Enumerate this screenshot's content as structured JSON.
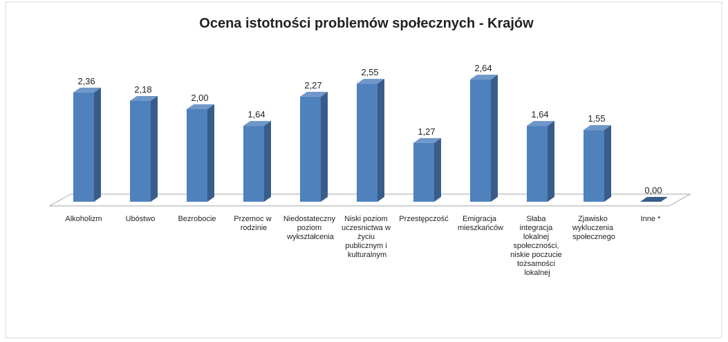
{
  "chart_data": {
    "type": "bar3d",
    "title": "Ocena istotności problemów społecznych - Krajów",
    "categories": [
      "Alkoholizm",
      "Ubóstwo",
      "Bezrobocie",
      "Przemoc w rodzinie",
      "Niedostateczny poziom wykształcenia",
      "Niski poziom uczesnictwa w życiu publicznym i kulturalnym",
      "Przestępczość",
      "Emigracja mieszkańców",
      "Słaba integracja lokalnej społeczności, niskie poczucie tożsamości lokalnej",
      "Zjawisko wykluczenia społecznego",
      "Inne *"
    ],
    "values": [
      2.36,
      2.18,
      2.0,
      1.64,
      2.27,
      2.55,
      1.27,
      2.64,
      1.64,
      1.55,
      0.0
    ],
    "value_labels": [
      "2,36",
      "2,18",
      "2,00",
      "1,64",
      "2,27",
      "2,55",
      "1,27",
      "2,64",
      "1,64",
      "1,55",
      "0,00"
    ],
    "color": "#4f81bd"
  }
}
